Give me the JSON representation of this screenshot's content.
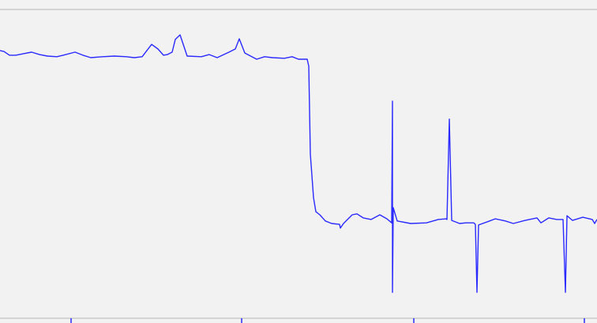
{
  "chart_data": {
    "type": "line",
    "title": "",
    "xlabel": "",
    "ylabel": "",
    "xlim": [
      0,
      756
    ],
    "ylim": [
      0,
      100
    ],
    "grid": false,
    "legend": "none",
    "x_ticks": [
      90,
      306,
      524,
      740
    ],
    "colors": {
      "line": "#2a2aff",
      "background": "#f2f2f2",
      "frame": "#d4d4d4",
      "tick": "#2a2aff"
    },
    "series": [
      {
        "x": [
          0,
          5,
          12,
          20,
          30,
          40,
          50,
          60,
          72,
          80,
          95,
          105,
          115,
          130,
          145,
          160,
          170,
          180,
          192,
          200,
          207,
          212,
          218,
          222,
          228,
          237,
          255,
          265,
          275,
          290,
          298,
          303,
          310,
          325,
          335,
          345,
          360,
          370,
          378,
          389,
          391,
          393,
          397,
          400,
          405,
          412,
          420,
          430,
          431,
          435,
          446,
          452,
          460,
          470,
          481,
          490,
          496,
          497,
          497,
          498,
          503,
          520,
          540,
          555,
          565,
          566,
          569,
          572,
          582,
          590,
          600,
          602,
          604,
          606,
          620,
          627,
          640,
          650,
          665,
          680,
          685,
          695,
          705,
          713,
          716,
          718,
          725,
          738,
          750,
          753,
          756
        ],
        "y": [
          86.7,
          86.4,
          85.2,
          85.2,
          85.7,
          86.2,
          85.4,
          84.9,
          84.7,
          85.2,
          86.2,
          85.2,
          84.4,
          84.7,
          84.9,
          84.7,
          84.4,
          84.7,
          88.7,
          87.2,
          85.2,
          85.4,
          86.2,
          90.3,
          91.8,
          84.9,
          84.7,
          85.4,
          84.4,
          86.2,
          87.2,
          90.5,
          85.9,
          83.9,
          84.7,
          84.4,
          84.2,
          84.7,
          83.9,
          83.9,
          81.6,
          53.2,
          39.1,
          34.5,
          33.5,
          31.5,
          30.7,
          30.4,
          29.2,
          30.7,
          33.5,
          33.8,
          32.5,
          32.0,
          33.5,
          32.2,
          30.9,
          70.3,
          8.4,
          35.8,
          31.5,
          30.7,
          30.9,
          32.0,
          32.2,
          32.0,
          64.5,
          31.7,
          30.7,
          30.9,
          30.9,
          30.4,
          8.4,
          30.2,
          31.5,
          32.2,
          31.5,
          30.7,
          31.7,
          32.5,
          30.9,
          32.5,
          32.0,
          32.0,
          8.4,
          33.2,
          31.7,
          32.7,
          32.0,
          30.7,
          32.0
        ]
      }
    ]
  }
}
